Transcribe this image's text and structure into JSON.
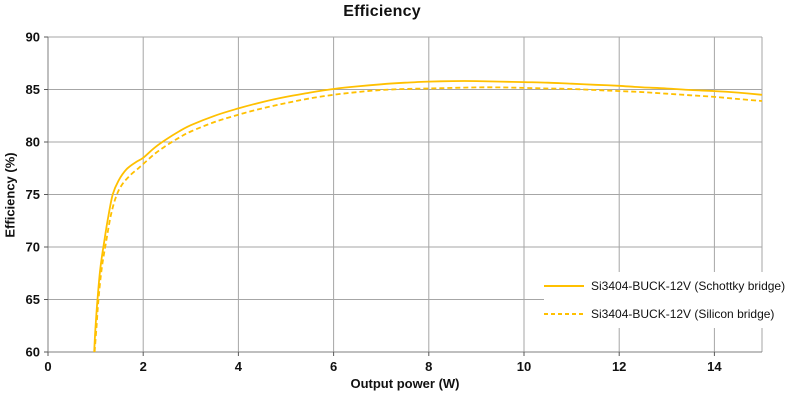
{
  "chart_data": {
    "type": "line",
    "title": "Efficiency",
    "xlabel": "Output power (W)",
    "ylabel": "Efficiency (%)",
    "xlim": [
      0,
      15
    ],
    "ylim": [
      60,
      90
    ],
    "x_ticks": [
      0,
      2,
      4,
      6,
      8,
      10,
      12,
      14
    ],
    "y_ticks": [
      60,
      65,
      70,
      75,
      80,
      85,
      90
    ],
    "grid": true,
    "legend_position": "inside-bottom-right",
    "grid_color": "#a6a6a6",
    "axis_color": "#7f7f7f",
    "tick_color": "#595959",
    "text_color": "#111111",
    "series": [
      {
        "name": "Si3404-BUCK-12V (Schottky bridge)",
        "style": "solid",
        "color": "#FFC000",
        "points": [
          [
            0.97,
            60
          ],
          [
            1.0,
            62.5
          ],
          [
            1.04,
            65
          ],
          [
            1.1,
            68
          ],
          [
            1.18,
            70.5
          ],
          [
            1.27,
            73
          ],
          [
            1.36,
            75
          ],
          [
            1.48,
            76.3
          ],
          [
            1.65,
            77.4
          ],
          [
            1.85,
            78.1
          ],
          [
            2.0,
            78.5
          ],
          [
            2.25,
            79.5
          ],
          [
            2.5,
            80.3
          ],
          [
            2.75,
            81.0
          ],
          [
            3.0,
            81.6
          ],
          [
            3.5,
            82.5
          ],
          [
            4.0,
            83.2
          ],
          [
            4.5,
            83.8
          ],
          [
            5.0,
            84.3
          ],
          [
            5.5,
            84.7
          ],
          [
            6.0,
            85.05
          ],
          [
            6.5,
            85.3
          ],
          [
            7.0,
            85.5
          ],
          [
            7.5,
            85.65
          ],
          [
            8.0,
            85.75
          ],
          [
            8.5,
            85.8
          ],
          [
            9.0,
            85.8
          ],
          [
            9.5,
            85.75
          ],
          [
            10.0,
            85.7
          ],
          [
            10.5,
            85.65
          ],
          [
            11.0,
            85.55
          ],
          [
            11.5,
            85.45
          ],
          [
            12.0,
            85.35
          ],
          [
            12.5,
            85.2
          ],
          [
            13.0,
            85.1
          ],
          [
            13.5,
            84.95
          ],
          [
            14.0,
            84.85
          ],
          [
            14.5,
            84.7
          ],
          [
            15.0,
            84.5
          ]
        ]
      },
      {
        "name": "Si3404-BUCK-12V (Silicon bridge)",
        "style": "dashed",
        "color": "#FFC000",
        "points": [
          [
            0.98,
            60
          ],
          [
            1.02,
            62.5
          ],
          [
            1.06,
            65
          ],
          [
            1.13,
            68
          ],
          [
            1.22,
            70.5
          ],
          [
            1.32,
            73
          ],
          [
            1.43,
            74.8
          ],
          [
            1.55,
            75.9
          ],
          [
            1.72,
            76.8
          ],
          [
            1.9,
            77.5
          ],
          [
            2.0,
            77.9
          ],
          [
            2.25,
            78.9
          ],
          [
            2.5,
            79.7
          ],
          [
            2.75,
            80.4
          ],
          [
            3.0,
            81.0
          ],
          [
            3.5,
            81.9
          ],
          [
            4.0,
            82.6
          ],
          [
            4.5,
            83.2
          ],
          [
            5.0,
            83.7
          ],
          [
            5.5,
            84.15
          ],
          [
            6.0,
            84.5
          ],
          [
            6.5,
            84.75
          ],
          [
            7.0,
            84.95
          ],
          [
            7.5,
            85.05
          ],
          [
            8.0,
            85.1
          ],
          [
            8.5,
            85.15
          ],
          [
            9.0,
            85.2
          ],
          [
            9.5,
            85.2
          ],
          [
            10.0,
            85.15
          ],
          [
            10.5,
            85.1
          ],
          [
            11.0,
            85.05
          ],
          [
            11.5,
            84.95
          ],
          [
            12.0,
            84.85
          ],
          [
            12.5,
            84.75
          ],
          [
            13.0,
            84.6
          ],
          [
            13.5,
            84.45
          ],
          [
            14.0,
            84.3
          ],
          [
            14.5,
            84.1
          ],
          [
            15.0,
            83.9
          ]
        ]
      }
    ]
  }
}
